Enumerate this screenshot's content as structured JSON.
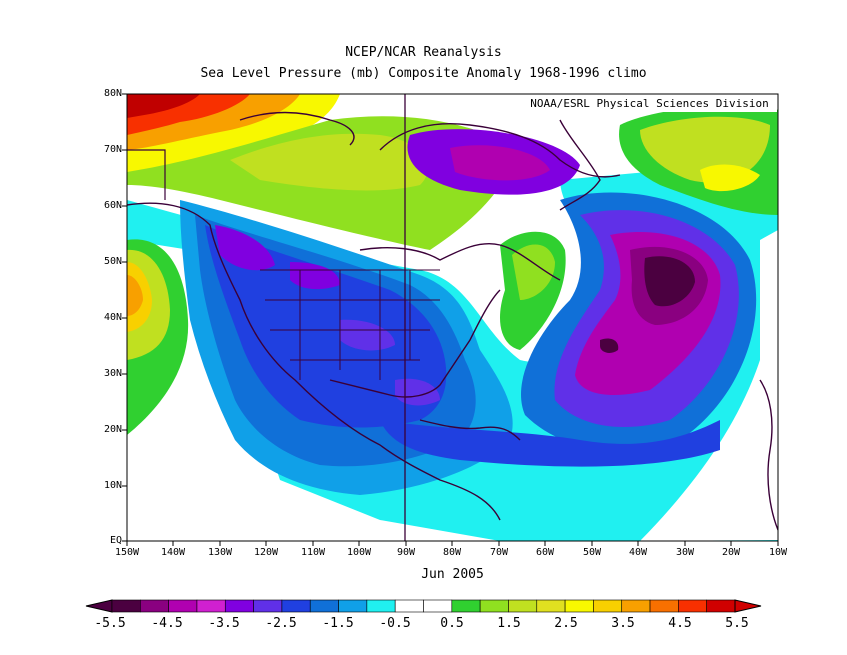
{
  "header": {
    "title_line1": "NCEP/NCAR Reanalysis",
    "title_line2": "Sea Level Pressure (mb) Composite Anomaly 1968-1996 climo"
  },
  "map": {
    "credit": "NOAA/ESRL Physical Sciences Division",
    "date_label": "Jun 2005",
    "lat_labels": [
      "80N",
      "70N",
      "60N",
      "50N",
      "40N",
      "30N",
      "20N",
      "10N",
      "EQ"
    ],
    "lon_labels": [
      "150W",
      "140W",
      "130W",
      "120W",
      "110W",
      "100W",
      "90W",
      "80W",
      "70W",
      "60W",
      "50W",
      "40W",
      "30W",
      "20W",
      "10W"
    ]
  },
  "colorbar": {
    "tick_labels": [
      "-5.5",
      "-4.5",
      "-3.5",
      "-2.5",
      "-1.5",
      "-0.5",
      "0.5",
      "1.5",
      "2.5",
      "3.5",
      "4.5",
      "5.5"
    ],
    "colors": [
      "#4b0040",
      "#8a0080",
      "#b000b0",
      "#d020d0",
      "#8000e0",
      "#6030e8",
      "#2040e0",
      "#1070d8",
      "#10a0e8",
      "#20f0f0",
      "#ffffff",
      "#ffffff",
      "#30d030",
      "#90e020",
      "#c0e020",
      "#e0e020",
      "#f8f800",
      "#f8d000",
      "#f8a000",
      "#f87000",
      "#f83000",
      "#d00000"
    ]
  },
  "legend_colors": {
    "neg_extreme": "#4b0040",
    "neutral": "#ffffff",
    "pos_extreme": "#d00000"
  }
}
